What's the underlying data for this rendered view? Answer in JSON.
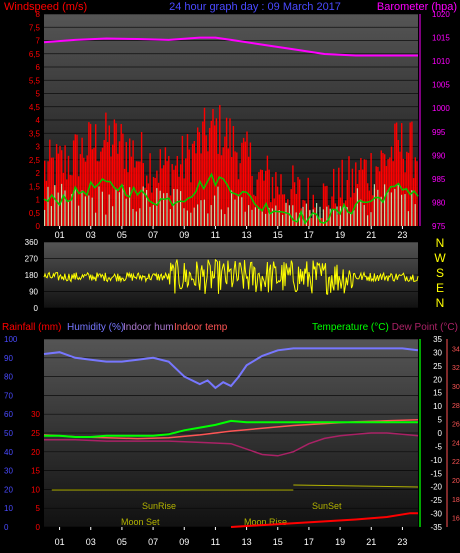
{
  "colors": {
    "wind_speed": "#ff0000",
    "wind_avg": "#00cc00",
    "wind_gust": "#c8ffc8",
    "barometer": "#ff00ff",
    "wind_dir": "#ffff00",
    "rainfall": "#ff0000",
    "humidity": "#7777ff",
    "indoor_hum": "#aa77cc",
    "indoor_temp": "#ff5555",
    "temperature": "#00ff00",
    "dew_point": "#aa2266",
    "sun_moon": "#b3b300",
    "axis_blue": "#4a4aff",
    "axis_green": "#00dd00"
  },
  "chart_data": [
    {
      "type": "bar",
      "header": {
        "left": "Windspeed (m/s)",
        "center": "24 hour graph day : 09 March 2017",
        "right": "Barometer (hpa)"
      },
      "x_ticks": [
        "01",
        "03",
        "05",
        "07",
        "09",
        "11",
        "13",
        "15",
        "17",
        "19",
        "21",
        "23"
      ],
      "ylim_left": [
        0,
        8
      ],
      "left_ticks": [
        "0",
        "0,5",
        "1",
        "1,5",
        "2",
        "2,5",
        "3",
        "3,5",
        "4",
        "4,5",
        "5",
        "5,5",
        "6",
        "6,5",
        "7",
        "7,5",
        "8"
      ],
      "ylim_right": [
        975,
        1020
      ],
      "right_ticks": [
        "975",
        "980",
        "985",
        "990",
        "995",
        "1000",
        "1005",
        "1010",
        "1015",
        "1020"
      ],
      "series": [
        {
          "name": "Windspeed (m/s)",
          "key": "wind_speed"
        },
        {
          "name": "Barometer (hpa)",
          "key": "barometer",
          "x": [
            0,
            2,
            4,
            6,
            8,
            10,
            11,
            12,
            14,
            16,
            18,
            20,
            22,
            24
          ],
          "y": [
            1014.0,
            1014.5,
            1014.8,
            1014.7,
            1014.5,
            1015.0,
            1015.0,
            1014.5,
            1013.5,
            1012.5,
            1011.5,
            1011.2,
            1011.2,
            1011.2
          ]
        }
      ]
    },
    {
      "type": "scatter",
      "ylim": [
        0,
        360
      ],
      "left_ticks": [
        "0",
        "90",
        "180",
        "270",
        "360"
      ],
      "compass": [
        "N",
        "W",
        "S",
        "E",
        "N"
      ],
      "series": [
        {
          "name": "Wind direction",
          "key": "wind_dir"
        }
      ]
    },
    {
      "type": "line",
      "header": {
        "rainfall": "Rainfall (mm)",
        "humidity": "Humidity (%)",
        "indoor_hum": "Indoor hum",
        "indoor_temp": "Indoor temp",
        "temperature": "Temperature (°C)",
        "dew_point": "Dew Point (°C)"
      },
      "x_ticks": [
        "01",
        "03",
        "05",
        "07",
        "09",
        "11",
        "13",
        "15",
        "17",
        "19",
        "21",
        "23"
      ],
      "ylim_humidity": [
        0,
        100
      ],
      "humidity_ticks": [
        "0",
        "10",
        "20",
        "30",
        "40",
        "50",
        "60",
        "70",
        "80",
        "90",
        "100"
      ],
      "ylim_rain": [
        0,
        30
      ],
      "rain_ticks": [
        "0",
        "5",
        "10",
        "15",
        "20",
        "25",
        "30"
      ],
      "ylim_temp": [
        -35,
        35
      ],
      "temp_ticks": [
        "-35",
        "-30",
        "-25",
        "-20",
        "-15",
        "-10",
        "-5",
        "0",
        "5",
        "10",
        "15",
        "20",
        "25",
        "30",
        "35"
      ],
      "indoor_ticks": [
        "16",
        "18",
        "20",
        "22",
        "24",
        "26",
        "28",
        "30",
        "32",
        "34"
      ],
      "annotations": {
        "sunrise": "SunRise",
        "sunset": "SunSet",
        "moonset": "Moon Set",
        "moonrise": "Moon Rise"
      },
      "series": [
        {
          "name": "Humidity (%)",
          "key": "humidity",
          "x": [
            0,
            1,
            2,
            3,
            4,
            5,
            6,
            7,
            8,
            9,
            10,
            10.5,
            11,
            11.5,
            12,
            12.5,
            13,
            14,
            15,
            16,
            17,
            18,
            19,
            20,
            21,
            22,
            23,
            24
          ],
          "y": [
            92,
            93,
            90,
            89,
            88,
            88,
            89,
            90,
            88,
            80,
            76,
            78,
            74,
            77,
            75,
            80,
            86,
            91,
            94,
            95,
            95,
            95,
            95,
            95,
            95,
            95,
            95,
            94
          ]
        },
        {
          "name": "Temperature (°C)",
          "key": "temperature",
          "x": [
            0,
            1,
            2,
            3,
            4,
            5,
            6,
            7,
            8,
            9,
            10,
            11,
            12,
            13,
            14,
            15,
            16,
            17,
            18,
            19,
            20,
            21,
            22,
            23,
            24
          ],
          "y": [
            -1.0,
            -1.0,
            -1.5,
            -1.5,
            -1.0,
            -1.0,
            -1.0,
            -1.0,
            -0.5,
            1.0,
            2.0,
            3.0,
            4.5,
            4.0,
            4.0,
            4.0,
            4.0,
            4.0,
            4.0,
            4.0,
            4.0,
            4.0,
            4.0,
            4.0,
            4.0
          ]
        },
        {
          "name": "Indoor temp",
          "key": "indoor_temp",
          "x": [
            0,
            2,
            4,
            6,
            8,
            10,
            12,
            14,
            16,
            18,
            20,
            22,
            24
          ],
          "y": [
            24.8,
            24.6,
            24.5,
            24.4,
            24.5,
            24.8,
            25.2,
            25.5,
            25.8,
            26.0,
            26.2,
            26.3,
            26.4
          ]
        },
        {
          "name": "Dew Point (°C)",
          "key": "dew_point",
          "x": [
            0,
            2,
            4,
            6,
            8,
            10,
            12,
            13,
            14,
            15,
            16,
            17,
            18,
            19,
            20,
            21,
            22,
            23,
            24
          ],
          "y": [
            -2.5,
            -2.5,
            -3.0,
            -3.0,
            -3.0,
            -3.5,
            -4.0,
            -6.0,
            -8.0,
            -8.5,
            -7.0,
            -4.0,
            -2.0,
            -1.0,
            -0.5,
            0.0,
            0.0,
            -0.5,
            -1.0
          ]
        },
        {
          "name": "Rainfall (mm)",
          "key": "rainfall",
          "x": [
            12,
            14,
            16,
            18,
            20,
            22,
            23.5,
            24
          ],
          "y": [
            0.0,
            0.3,
            0.6,
            0.9,
            1.2,
            1.6,
            2.2,
            2.2
          ]
        }
      ]
    }
  ]
}
